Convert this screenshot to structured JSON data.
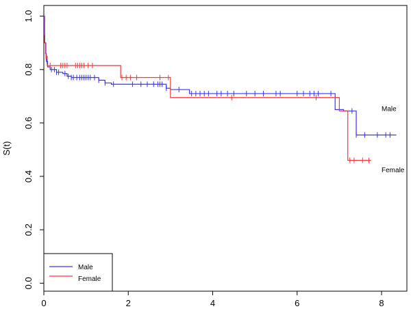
{
  "chart_data": {
    "type": "line",
    "subtype": "kaplan-meier survival curve",
    "title": "",
    "xlabel": "",
    "ylabel": "S(t)",
    "xlim": [
      0,
      8.6
    ],
    "ylim": [
      -0.03,
      1.04
    ],
    "x_ticks": [
      0,
      2,
      4,
      6,
      8
    ],
    "y_ticks": [
      0.0,
      0.2,
      0.4,
      0.6,
      0.8,
      1.0
    ],
    "x_tick_labels": [
      "0",
      "2",
      "4",
      "6",
      "8"
    ],
    "y_tick_labels": [
      "0.0",
      "0.2",
      "0.4",
      "0.6",
      "0.8",
      "1.0"
    ],
    "grid": false,
    "legend_position": "bottom-left",
    "series": [
      {
        "name": "Male",
        "color": "#3333ff",
        "annotation": "Male",
        "annotation_at": [
          8.0,
          0.645
        ],
        "steps": [
          [
            0,
            1.0
          ],
          [
            0.01,
            0.93
          ],
          [
            0.02,
            0.9
          ],
          [
            0.04,
            0.86
          ],
          [
            0.06,
            0.83
          ],
          [
            0.09,
            0.81
          ],
          [
            0.15,
            0.8
          ],
          [
            0.3,
            0.79
          ],
          [
            0.45,
            0.785
          ],
          [
            0.55,
            0.775
          ],
          [
            0.65,
            0.77
          ],
          [
            1.3,
            0.76
          ],
          [
            1.45,
            0.75
          ],
          [
            1.6,
            0.745
          ],
          [
            2.9,
            0.73
          ],
          [
            3.0,
            0.725
          ],
          [
            3.45,
            0.71
          ],
          [
            6.9,
            0.65
          ],
          [
            7.1,
            0.645
          ],
          [
            7.4,
            0.555
          ],
          [
            8.35,
            0.555
          ]
        ],
        "censor_times": [
          0.08,
          0.18,
          0.25,
          0.3,
          0.35,
          0.5,
          0.58,
          0.65,
          0.7,
          0.78,
          0.85,
          0.9,
          0.95,
          1.0,
          1.05,
          1.1,
          1.2,
          1.3,
          1.45,
          1.65,
          2.1,
          2.3,
          2.45,
          2.6,
          2.7,
          2.75,
          2.8,
          2.9,
          3.2,
          3.5,
          3.6,
          3.7,
          3.8,
          3.9,
          4.1,
          4.2,
          4.35,
          4.5,
          4.8,
          5.0,
          5.2,
          5.5,
          5.6,
          6.0,
          6.15,
          6.3,
          6.4,
          6.5,
          6.8,
          7.3,
          7.4,
          7.6,
          7.9,
          8.1,
          8.2
        ]
      },
      {
        "name": "Female",
        "color": "#ff3333",
        "annotation": "Female",
        "annotation_at": [
          8.0,
          0.415
        ],
        "steps": [
          [
            0,
            1.0
          ],
          [
            0.02,
            0.9
          ],
          [
            0.05,
            0.85
          ],
          [
            0.08,
            0.815
          ],
          [
            1.82,
            0.77
          ],
          [
            3.0,
            0.695
          ],
          [
            7.0,
            0.645
          ],
          [
            7.2,
            0.46
          ],
          [
            7.75,
            0.46
          ]
        ],
        "censor_times": [
          0.05,
          0.15,
          0.4,
          0.45,
          0.5,
          0.55,
          0.75,
          0.8,
          0.85,
          0.9,
          0.95,
          1.05,
          1.15,
          1.85,
          1.95,
          2.05,
          2.2,
          2.75,
          2.95,
          4.45,
          6.45,
          7.25,
          7.35,
          7.55,
          7.7
        ]
      }
    ]
  },
  "legend": {
    "items": [
      {
        "label": "Male",
        "color": "#3333ff"
      },
      {
        "label": "Female",
        "color": "#ff3333"
      }
    ]
  }
}
